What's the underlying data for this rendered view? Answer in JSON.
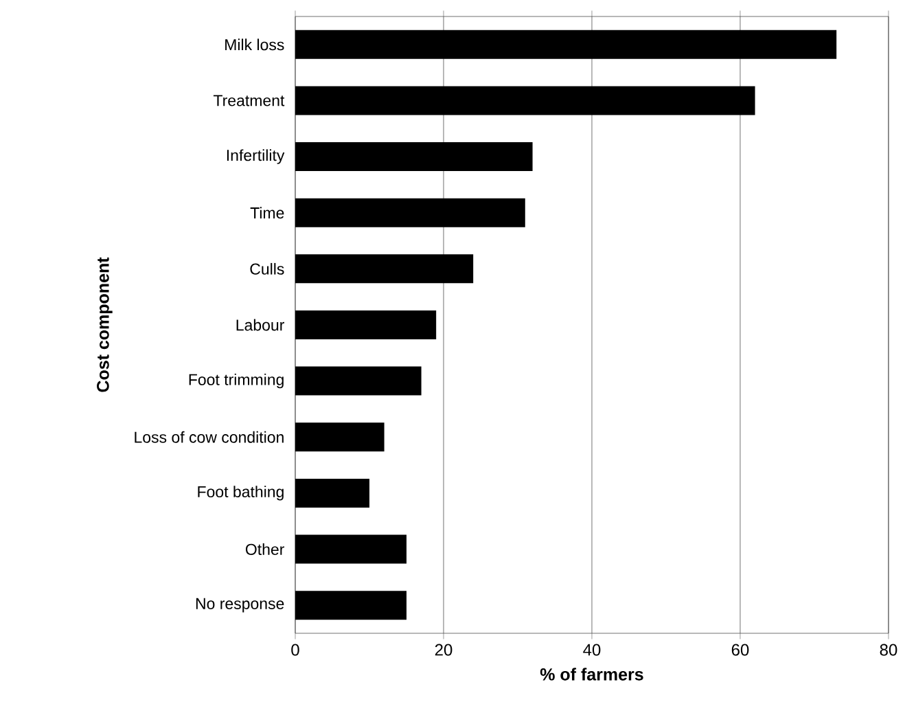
{
  "chart_data": {
    "type": "bar",
    "orientation": "horizontal",
    "xlabel": "% of farmers",
    "ylabel": "Cost component",
    "categories": [
      "Milk loss",
      "Treatment",
      "Infertility",
      "Time",
      "Culls",
      "Labour",
      "Foot trimming",
      "Loss of cow condition",
      "Foot bathing",
      "Other",
      "No response"
    ],
    "values": [
      73,
      62,
      32,
      31,
      24,
      19,
      17,
      12,
      10,
      15,
      15
    ],
    "color": "#000000",
    "xlim": [
      0,
      80
    ],
    "xticks": [
      0,
      20,
      40,
      60,
      80
    ],
    "grid": "x"
  }
}
